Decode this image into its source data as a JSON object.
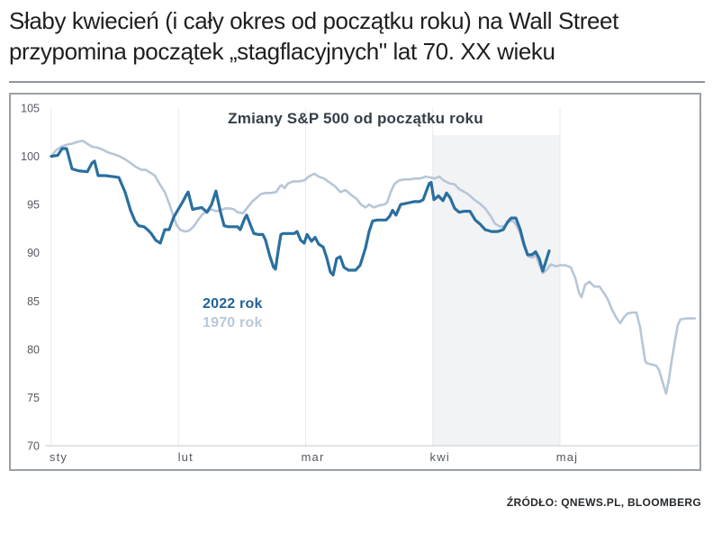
{
  "header": {
    "line1": "Słaby kwiecień (i cały okres od początku roku) na Wall Street",
    "line2": "przypomina początek „stagflacyjnych\" lat 70. XX wieku"
  },
  "footer": {
    "source": "ŹRÓDŁO: QNEWS.PL, BLOOMBERG"
  },
  "colors": {
    "headline_text": "#1d1f21",
    "divider": "#8f959a",
    "frame_border": "#9aa0a5",
    "background": "#ffffff"
  },
  "chart_data": {
    "type": "line",
    "title": "Zmiany S&P 500 od początku roku",
    "xlabel": "",
    "ylabel": "",
    "ylim": [
      70,
      105
    ],
    "y_ticks": [
      105,
      100,
      95,
      90,
      85,
      80,
      75,
      70
    ],
    "x_ticks": [
      {
        "label": "sty",
        "pos": 0
      },
      {
        "label": "lut",
        "pos": 1
      },
      {
        "label": "mar",
        "pos": 2
      },
      {
        "label": "kwi",
        "pos": 3
      },
      {
        "label": "maj",
        "pos": 4
      }
    ],
    "grid": "vertical-months",
    "shaded_region": {
      "from": 3,
      "to": 4,
      "color": "#f2f3f5"
    },
    "grid_color": "#e7e9eb",
    "axis_color": "#c6cbd0",
    "legend_position": "center-left-inside",
    "legend": [
      {
        "label": "2022 rok",
        "color": "#1f6397"
      },
      {
        "label": "1970 rok",
        "color": "#b9c8d9"
      }
    ],
    "series": [
      {
        "name": "2022 rok",
        "color": "#2a6f9f",
        "width": 3.2,
        "points": [
          [
            0,
            100.0
          ],
          [
            0.05,
            100.1
          ],
          [
            0.085,
            100.8
          ],
          [
            0.12,
            100.8
          ],
          [
            0.163,
            98.7
          ],
          [
            0.212,
            98.5
          ],
          [
            0.283,
            98.4
          ],
          [
            0.319,
            99.3
          ],
          [
            0.34,
            99.5
          ],
          [
            0.368,
            98.0
          ],
          [
            0.425,
            98.0
          ],
          [
            0.481,
            97.9
          ],
          [
            0.531,
            97.8
          ],
          [
            0.58,
            96.3
          ],
          [
            0.623,
            94.4
          ],
          [
            0.658,
            93.3
          ],
          [
            0.687,
            92.8
          ],
          [
            0.729,
            92.7
          ],
          [
            0.757,
            92.4
          ],
          [
            0.786,
            92.0
          ],
          [
            0.821,
            91.3
          ],
          [
            0.857,
            91.0
          ],
          [
            0.892,
            92.4
          ],
          [
            0.927,
            92.4
          ],
          [
            0.963,
            93.7
          ],
          [
            0.998,
            94.5
          ],
          [
            1.034,
            95.3
          ],
          [
            1.062,
            96.0
          ],
          [
            1.076,
            96.3
          ],
          [
            1.111,
            94.5
          ],
          [
            1.147,
            94.6
          ],
          [
            1.182,
            94.7
          ],
          [
            1.225,
            94.2
          ],
          [
            1.26,
            95.0
          ],
          [
            1.295,
            96.4
          ],
          [
            1.331,
            94.2
          ],
          [
            1.359,
            92.8
          ],
          [
            1.394,
            92.7
          ],
          [
            1.437,
            92.7
          ],
          [
            1.465,
            92.7
          ],
          [
            1.486,
            92.4
          ],
          [
            1.522,
            93.6
          ],
          [
            1.536,
            93.9
          ],
          [
            1.572,
            92.7
          ],
          [
            1.593,
            92.0
          ],
          [
            1.628,
            91.9
          ],
          [
            1.664,
            91.9
          ],
          [
            1.685,
            91.3
          ],
          [
            1.72,
            89.6
          ],
          [
            1.748,
            88.5
          ],
          [
            1.763,
            88.3
          ],
          [
            1.784,
            90.2
          ],
          [
            1.805,
            91.9
          ],
          [
            1.826,
            92.0
          ],
          [
            1.862,
            92.0
          ],
          [
            1.911,
            92.0
          ],
          [
            1.933,
            92.2
          ],
          [
            1.961,
            91.3
          ],
          [
            1.989,
            91.0
          ],
          [
            2.011,
            91.9
          ],
          [
            2.046,
            91.2
          ],
          [
            2.074,
            91.6
          ],
          [
            2.103,
            90.9
          ],
          [
            2.138,
            90.6
          ],
          [
            2.166,
            89.5
          ],
          [
            2.195,
            88.0
          ],
          [
            2.216,
            87.7
          ],
          [
            2.244,
            89.4
          ],
          [
            2.272,
            89.6
          ],
          [
            2.301,
            88.5
          ],
          [
            2.336,
            88.2
          ],
          [
            2.393,
            88.2
          ],
          [
            2.428,
            88.7
          ],
          [
            2.471,
            90.5
          ],
          [
            2.499,
            92.2
          ],
          [
            2.527,
            93.3
          ],
          [
            2.563,
            93.4
          ],
          [
            2.598,
            93.4
          ],
          [
            2.633,
            93.4
          ],
          [
            2.662,
            93.8
          ],
          [
            2.683,
            94.4
          ],
          [
            2.711,
            93.9
          ],
          [
            2.747,
            95.0
          ],
          [
            2.782,
            95.1
          ],
          [
            2.817,
            95.2
          ],
          [
            2.853,
            95.3
          ],
          [
            2.895,
            95.3
          ],
          [
            2.924,
            95.5
          ],
          [
            2.952,
            96.5
          ],
          [
            2.973,
            97.2
          ],
          [
            2.987,
            97.3
          ],
          [
            3.009,
            95.5
          ],
          [
            3.044,
            95.9
          ],
          [
            3.08,
            95.4
          ],
          [
            3.108,
            96.2
          ],
          [
            3.136,
            95.7
          ],
          [
            3.172,
            94.6
          ],
          [
            3.207,
            94.2
          ],
          [
            3.249,
            94.3
          ],
          [
            3.292,
            94.3
          ],
          [
            3.334,
            93.4
          ],
          [
            3.37,
            93.0
          ],
          [
            3.412,
            92.4
          ],
          [
            3.462,
            92.2
          ],
          [
            3.511,
            92.2
          ],
          [
            3.554,
            92.4
          ],
          [
            3.589,
            93.2
          ],
          [
            3.617,
            93.6
          ],
          [
            3.653,
            93.6
          ],
          [
            3.688,
            92.4
          ],
          [
            3.717,
            90.9
          ],
          [
            3.745,
            89.8
          ],
          [
            3.78,
            89.8
          ],
          [
            3.809,
            90.1
          ],
          [
            3.837,
            89.4
          ],
          [
            3.865,
            88.1
          ],
          [
            3.894,
            89.3
          ],
          [
            3.915,
            90.2
          ]
        ]
      },
      {
        "name": "1970 rok",
        "color": "#b7c6d7",
        "width": 2.6,
        "points": [
          [
            0,
            100.0
          ],
          [
            0.035,
            100.6
          ],
          [
            0.078,
            101.0
          ],
          [
            0.12,
            101.2
          ],
          [
            0.163,
            101.3
          ],
          [
            0.205,
            101.5
          ],
          [
            0.248,
            101.6
          ],
          [
            0.283,
            101.3
          ],
          [
            0.319,
            101.0
          ],
          [
            0.361,
            100.9
          ],
          [
            0.404,
            100.7
          ],
          [
            0.446,
            100.4
          ],
          [
            0.496,
            100.2
          ],
          [
            0.538,
            100.0
          ],
          [
            0.58,
            99.7
          ],
          [
            0.623,
            99.3
          ],
          [
            0.666,
            98.9
          ],
          [
            0.708,
            98.6
          ],
          [
            0.743,
            98.6
          ],
          [
            0.779,
            98.3
          ],
          [
            0.814,
            98.0
          ],
          [
            0.857,
            97.0
          ],
          [
            0.892,
            96.3
          ],
          [
            0.927,
            95.1
          ],
          [
            0.956,
            94.0
          ],
          [
            0.984,
            92.9
          ],
          [
            1.012,
            92.4
          ],
          [
            1.048,
            92.2
          ],
          [
            1.083,
            92.3
          ],
          [
            1.118,
            92.7
          ],
          [
            1.154,
            93.4
          ],
          [
            1.189,
            94.0
          ],
          [
            1.225,
            94.3
          ],
          [
            1.26,
            94.5
          ],
          [
            1.295,
            94.3
          ],
          [
            1.331,
            94.4
          ],
          [
            1.366,
            94.6
          ],
          [
            1.402,
            94.6
          ],
          [
            1.437,
            94.5
          ],
          [
            1.465,
            94.2
          ],
          [
            1.508,
            94.1
          ],
          [
            1.543,
            94.7
          ],
          [
            1.579,
            95.3
          ],
          [
            1.614,
            95.7
          ],
          [
            1.649,
            96.1
          ],
          [
            1.685,
            96.2
          ],
          [
            1.727,
            96.2
          ],
          [
            1.77,
            96.3
          ],
          [
            1.798,
            96.9
          ],
          [
            1.812,
            97.0
          ],
          [
            1.834,
            96.7
          ],
          [
            1.862,
            97.2
          ],
          [
            1.904,
            97.4
          ],
          [
            1.947,
            97.4
          ],
          [
            1.989,
            97.5
          ],
          [
            2.025,
            97.9
          ],
          [
            2.067,
            98.2
          ],
          [
            2.103,
            97.9
          ],
          [
            2.145,
            97.7
          ],
          [
            2.187,
            97.3
          ],
          [
            2.23,
            96.9
          ],
          [
            2.272,
            96.3
          ],
          [
            2.315,
            96.5
          ],
          [
            2.357,
            96.0
          ],
          [
            2.4,
            95.6
          ],
          [
            2.435,
            95.0
          ],
          [
            2.471,
            94.7
          ],
          [
            2.499,
            95.0
          ],
          [
            2.535,
            94.7
          ],
          [
            2.577,
            94.9
          ],
          [
            2.619,
            95.0
          ],
          [
            2.641,
            95.2
          ],
          [
            2.669,
            96.3
          ],
          [
            2.697,
            97.1
          ],
          [
            2.733,
            97.5
          ],
          [
            2.775,
            97.6
          ],
          [
            2.817,
            97.6
          ],
          [
            2.86,
            97.7
          ],
          [
            2.902,
            97.7
          ],
          [
            2.945,
            97.9
          ],
          [
            2.98,
            97.8
          ],
          [
            3.016,
            97.7
          ],
          [
            3.051,
            97.9
          ],
          [
            3.086,
            97.5
          ],
          [
            3.129,
            97.2
          ],
          [
            3.172,
            97.1
          ],
          [
            3.207,
            96.6
          ],
          [
            3.249,
            96.3
          ],
          [
            3.285,
            96.0
          ],
          [
            3.327,
            95.5
          ],
          [
            3.37,
            95.1
          ],
          [
            3.412,
            94.6
          ],
          [
            3.455,
            93.8
          ],
          [
            3.49,
            93.0
          ],
          [
            3.533,
            92.7
          ],
          [
            3.568,
            92.8
          ],
          [
            3.604,
            93.3
          ],
          [
            3.632,
            93.3
          ],
          [
            3.66,
            92.8
          ],
          [
            3.688,
            92.0
          ],
          [
            3.717,
            90.7
          ],
          [
            3.752,
            89.6
          ],
          [
            3.787,
            89.5
          ],
          [
            3.809,
            89.8
          ],
          [
            3.837,
            88.8
          ],
          [
            3.865,
            87.9
          ],
          [
            3.894,
            88.2
          ],
          [
            3.929,
            88.8
          ],
          [
            3.965,
            88.6
          ],
          [
            4.0,
            88.7
          ],
          [
            4.042,
            88.7
          ],
          [
            4.085,
            88.5
          ],
          [
            4.12,
            87.4
          ],
          [
            4.149,
            85.9
          ],
          [
            4.17,
            85.4
          ],
          [
            4.198,
            86.7
          ],
          [
            4.233,
            87.0
          ],
          [
            4.269,
            86.5
          ],
          [
            4.311,
            86.5
          ],
          [
            4.347,
            85.8
          ],
          [
            4.375,
            85.2
          ],
          [
            4.41,
            84.1
          ],
          [
            4.446,
            83.2
          ],
          [
            4.474,
            82.7
          ],
          [
            4.502,
            83.3
          ],
          [
            4.531,
            83.7
          ],
          [
            4.566,
            83.8
          ],
          [
            4.601,
            83.8
          ],
          [
            4.63,
            82.3
          ],
          [
            4.651,
            80.4
          ],
          [
            4.672,
            78.7
          ],
          [
            4.694,
            78.5
          ],
          [
            4.729,
            78.4
          ],
          [
            4.757,
            78.3
          ],
          [
            4.778,
            77.9
          ],
          [
            4.807,
            76.6
          ],
          [
            4.835,
            75.4
          ],
          [
            4.856,
            76.8
          ],
          [
            4.877,
            78.7
          ],
          [
            4.906,
            81.0
          ],
          [
            4.927,
            82.5
          ],
          [
            4.948,
            83.1
          ],
          [
            4.99,
            83.2
          ],
          [
            5.033,
            83.2
          ],
          [
            5.061,
            83.2
          ]
        ]
      }
    ]
  }
}
